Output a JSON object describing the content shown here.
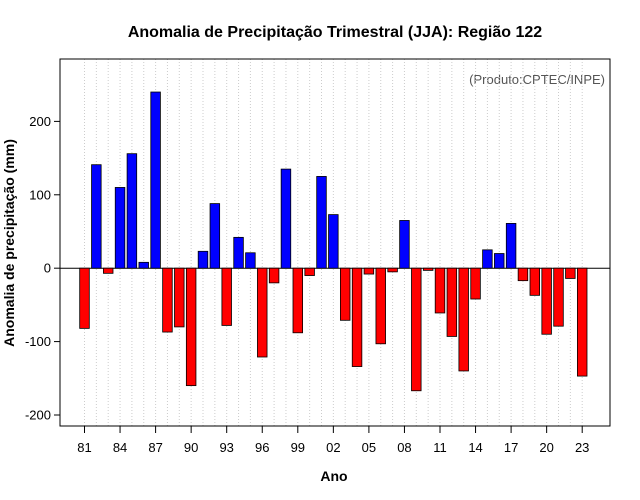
{
  "chart_data": {
    "type": "bar",
    "title": "Anomalia de Precipitação Trimestral (JJA): Região 122",
    "xlabel": "Ano",
    "ylabel": "Anomalia de precipitação (mm)",
    "annotation": "(Produto:CPTEC/INPE)",
    "ylim": [
      -215,
      285
    ],
    "y_ticks": [
      -200,
      -100,
      0,
      100,
      200
    ],
    "x_tick_labels": [
      "81",
      "84",
      "87",
      "90",
      "93",
      "96",
      "99",
      "02",
      "05",
      "08",
      "11",
      "14",
      "17",
      "20",
      "23"
    ],
    "x_tick_every": 3,
    "grid": "vertical dotted",
    "categories": [
      "1981",
      "1982",
      "1983",
      "1984",
      "1985",
      "1986",
      "1987",
      "1988",
      "1989",
      "1990",
      "1991",
      "1992",
      "1993",
      "1994",
      "1995",
      "1996",
      "1997",
      "1998",
      "1999",
      "2000",
      "2001",
      "2002",
      "2003",
      "2004",
      "2005",
      "2006",
      "2007",
      "2008",
      "2009",
      "2010",
      "2011",
      "2012",
      "2013",
      "2014",
      "2015",
      "2016",
      "2017",
      "2018",
      "2019",
      "2020",
      "2021",
      "2022",
      "2023"
    ],
    "values": [
      -82,
      141,
      -7,
      110,
      156,
      8,
      240,
      -87,
      -80,
      -160,
      23,
      88,
      -78,
      42,
      21,
      -121,
      -20,
      135,
      -88,
      -10,
      125,
      73,
      -71,
      -134,
      -8,
      -103,
      -5,
      65,
      -167,
      -3,
      -61,
      -93,
      -140,
      -42,
      25,
      20,
      61,
      -17,
      -37,
      -90,
      -79,
      -14,
      -147
    ],
    "positive_color": "#0000ff",
    "negative_color": "#ff0000",
    "outline_color": "#000000",
    "grid_color": "#cccccc"
  }
}
